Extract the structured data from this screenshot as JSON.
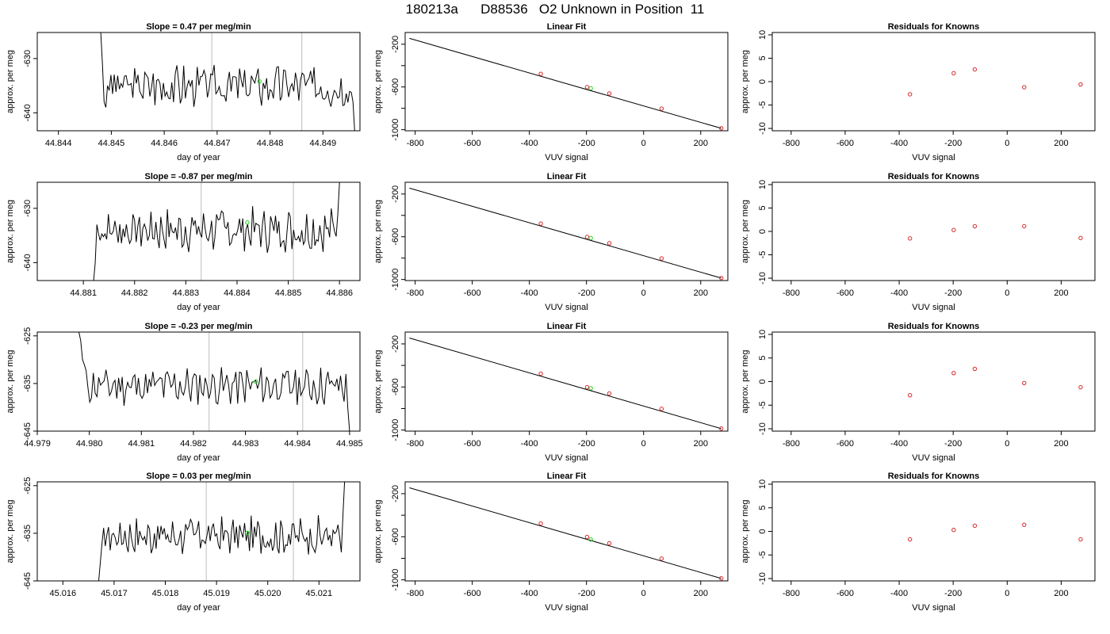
{
  "page_title": "180213a      D88536   O2 Unknown in Position  11",
  "chart_data": [
    {
      "type": "line",
      "title": "Slope =  0.47  per meg/min",
      "xlabel": "day of year",
      "ylabel": "approx. per meg",
      "xlim": [
        44.8436,
        44.8497
      ],
      "ylim": [
        -643.3,
        -625.2
      ],
      "xticks": [
        44.844,
        44.845,
        44.846,
        44.847,
        44.848,
        44.849
      ],
      "xtick_labels": [
        "44.844",
        "44.845",
        "44.846",
        "44.847",
        "44.848",
        "44.849"
      ],
      "yticks": [
        -630,
        -640
      ],
      "ytick_labels": [
        "-630",
        "-640"
      ],
      "vlines": [
        44.8469,
        44.8486
      ],
      "series": [
        {
          "start": 44.8448,
          "end": 44.8496,
          "mean": -635,
          "seed": 3,
          "head": [
            -625.2,
            -631,
            -638,
            -639,
            -635
          ],
          "tail": [
            -638,
            -643.3
          ]
        }
      ],
      "marker": {
        "x": 44.8478,
        "y": -634.2
      },
      "grid": false
    },
    {
      "type": "scatter",
      "title": "Linear Fit",
      "xlabel": "VUV signal",
      "ylabel": "approx. per meg",
      "xlim": [
        -835,
        295
      ],
      "ylim": [
        -1010,
        -90
      ],
      "xticks": [
        -800,
        -600,
        -400,
        -200,
        0,
        200
      ],
      "xtick_labels": [
        "-800",
        "-600",
        "-400",
        "-200",
        "0",
        "200"
      ],
      "yticks": [
        -200,
        -400,
        -600,
        -800,
        -1000
      ],
      "ytick_labels": [
        "-200",
        "",
        "-600",
        "",
        "-1000"
      ],
      "line": {
        "x": [
          -820,
          272
        ],
        "y": [
          -145,
          -987
        ]
      },
      "points": {
        "x": [
          -360,
          -198,
          -120,
          63,
          272
        ],
        "y": [
          -477,
          -602,
          -661,
          -803,
          -986
        ]
      },
      "marker": {
        "x": -185,
        "y": -612
      },
      "grid": false
    },
    {
      "type": "scatter",
      "title": "Residuals for Knowns",
      "xlabel": "VUV signal",
      "ylabel": "approx. per meg",
      "xlim": [
        -870,
        325
      ],
      "ylim": [
        -10.5,
        10.5
      ],
      "xticks": [
        -800,
        -600,
        -400,
        -200,
        0,
        200
      ],
      "xtick_labels": [
        "-800",
        "-600",
        "-400",
        "-200",
        "0",
        "200"
      ],
      "yticks": [
        10,
        5,
        0,
        -5,
        -10
      ],
      "ytick_labels": [
        "10",
        "5",
        "0",
        "-5",
        "-10"
      ],
      "points": {
        "x": [
          -360,
          -198,
          -120,
          63,
          272
        ],
        "y": [
          -2.7,
          1.8,
          2.6,
          -1.2,
          -0.6
        ]
      },
      "grid": false
    },
    {
      "type": "line",
      "title": "Slope =  -0.87  per meg/min",
      "xlabel": "day of year",
      "ylabel": "approx. per meg",
      "xlim": [
        44.8801,
        44.8864
      ],
      "ylim": [
        -643.3,
        -625.2
      ],
      "xticks": [
        44.881,
        44.882,
        44.883,
        44.884,
        44.885,
        44.886
      ],
      "xtick_labels": [
        "44.881",
        "44.882",
        "44.883",
        "44.884",
        "44.885",
        "44.886"
      ],
      "yticks": [
        -630,
        -640
      ],
      "ytick_labels": [
        "-630",
        "-640"
      ],
      "vlines": [
        44.8833,
        44.8851
      ],
      "series": [
        {
          "start": 44.8812,
          "end": 44.886,
          "mean": -634,
          "seed": 7,
          "head": [
            -643.3,
            -640,
            -633
          ],
          "tail": [
            -631,
            -625.2
          ]
        }
      ],
      "marker": {
        "x": 44.8842,
        "y": -632.6
      },
      "grid": false
    },
    {
      "type": "scatter",
      "title": "Linear Fit",
      "xlabel": "VUV signal",
      "ylabel": "approx. per meg",
      "xlim": [
        -835,
        295
      ],
      "ylim": [
        -1010,
        -90
      ],
      "xticks": [
        -800,
        -600,
        -400,
        -200,
        0,
        200
      ],
      "xtick_labels": [
        "-800",
        "-600",
        "-400",
        "-200",
        "0",
        "200"
      ],
      "yticks": [
        -200,
        -400,
        -600,
        -800,
        -1000
      ],
      "ytick_labels": [
        "-200",
        "",
        "-600",
        "",
        "-1000"
      ],
      "line": {
        "x": [
          -820,
          272
        ],
        "y": [
          -145,
          -987
        ]
      },
      "points": {
        "x": [
          -360,
          -198,
          -120,
          63,
          272
        ],
        "y": [
          -477,
          -602,
          -661,
          -803,
          -986
        ]
      },
      "marker": {
        "x": -185,
        "y": -612
      },
      "grid": false
    },
    {
      "type": "scatter",
      "title": "Residuals for Knowns",
      "xlabel": "VUV signal",
      "ylabel": "approx. per meg",
      "xlim": [
        -870,
        325
      ],
      "ylim": [
        -10.5,
        10.5
      ],
      "xticks": [
        -800,
        -600,
        -400,
        -200,
        0,
        200
      ],
      "xtick_labels": [
        "-800",
        "-600",
        "-400",
        "-200",
        "0",
        "200"
      ],
      "yticks": [
        10,
        5,
        0,
        -5,
        -10
      ],
      "ytick_labels": [
        "10",
        "5",
        "0",
        "-5",
        "-10"
      ],
      "points": {
        "x": [
          -360,
          -198,
          -120,
          63,
          272
        ],
        "y": [
          -1.5,
          0.3,
          1.1,
          1.1,
          -1.4
        ]
      },
      "grid": false
    },
    {
      "type": "line",
      "title": "Slope =  -0.23  per meg/min",
      "xlabel": "day of year",
      "ylabel": "approx. per meg",
      "xlim": [
        44.979,
        44.9852
      ],
      "ylim": [
        -645,
        -624.2
      ],
      "xticks": [
        44.979,
        44.98,
        44.981,
        44.982,
        44.983,
        44.984,
        44.985
      ],
      "xtick_labels": [
        "44.979",
        "44.980",
        "44.981",
        "44.982",
        "44.983",
        "44.984",
        "44.985"
      ],
      "yticks": [
        -625,
        -635,
        -645
      ],
      "ytick_labels": [
        "-625",
        "-635",
        "-645"
      ],
      "vlines": [
        44.9823,
        44.9841
      ],
      "series": [
        {
          "start": 44.9798,
          "end": 44.985,
          "mean": -635.5,
          "seed": 11,
          "head": [
            -624.2,
            -626,
            -630,
            -631
          ],
          "tail": [
            -640,
            -645
          ]
        }
      ],
      "marker": {
        "x": 44.9832,
        "y": -634.6
      },
      "grid": false
    },
    {
      "type": "scatter",
      "title": "Linear Fit",
      "xlabel": "VUV signal",
      "ylabel": "approx. per meg",
      "xlim": [
        -835,
        295
      ],
      "ylim": [
        -1010,
        -90
      ],
      "xticks": [
        -800,
        -600,
        -400,
        -200,
        0,
        200
      ],
      "xtick_labels": [
        "-800",
        "-600",
        "-400",
        "-200",
        "0",
        "200"
      ],
      "yticks": [
        -200,
        -400,
        -600,
        -800,
        -1000
      ],
      "ytick_labels": [
        "-200",
        "",
        "-600",
        "",
        "-1000"
      ],
      "line": {
        "x": [
          -820,
          272
        ],
        "y": [
          -145,
          -987
        ]
      },
      "points": {
        "x": [
          -360,
          -198,
          -120,
          63,
          272
        ],
        "y": [
          -477,
          -602,
          -661,
          -803,
          -986
        ]
      },
      "marker": {
        "x": -185,
        "y": -612
      },
      "grid": false
    },
    {
      "type": "scatter",
      "title": "Residuals for Knowns",
      "xlabel": "VUV signal",
      "ylabel": "approx. per meg",
      "xlim": [
        -870,
        325
      ],
      "ylim": [
        -10.5,
        10.5
      ],
      "xticks": [
        -800,
        -600,
        -400,
        -200,
        0,
        200
      ],
      "xtick_labels": [
        "-800",
        "-600",
        "-400",
        "-200",
        "0",
        "200"
      ],
      "yticks": [
        10,
        5,
        0,
        -5,
        -10
      ],
      "ytick_labels": [
        "10",
        "5",
        "0",
        "-5",
        "-10"
      ],
      "points": {
        "x": [
          -360,
          -198,
          -120,
          63,
          272
        ],
        "y": [
          -2.9,
          1.8,
          2.7,
          -0.3,
          -1.2
        ]
      },
      "grid": false
    },
    {
      "type": "line",
      "title": "Slope =  0.03  per meg/min",
      "xlabel": "day of year",
      "ylabel": "approx. per meg",
      "xlim": [
        45.0155,
        45.0218
      ],
      "ylim": [
        -645,
        -624.2
      ],
      "xticks": [
        45.016,
        45.017,
        45.018,
        45.019,
        45.02,
        45.021
      ],
      "xtick_labels": [
        "45.016",
        "45.017",
        "45.018",
        "45.019",
        "45.020",
        "45.021"
      ],
      "yticks": [
        -625,
        -635,
        -645
      ],
      "ytick_labels": [
        "-625",
        "-635",
        "-645"
      ],
      "vlines": [
        45.0188,
        45.0205
      ],
      "series": [
        {
          "start": 45.0167,
          "end": 45.0215,
          "mean": -635.5,
          "seed": 17,
          "head": [
            -645,
            -641,
            -637
          ],
          "tail": [
            -639,
            -631,
            -624.2
          ]
        }
      ],
      "marker": {
        "x": 45.0196,
        "y": -634.9
      },
      "grid": false
    },
    {
      "type": "scatter",
      "title": "Linear Fit",
      "xlabel": "VUV signal",
      "ylabel": "approx. per meg",
      "xlim": [
        -835,
        295
      ],
      "ylim": [
        -1010,
        -90
      ],
      "xticks": [
        -800,
        -600,
        -400,
        -200,
        0,
        200
      ],
      "xtick_labels": [
        "-800",
        "-600",
        "-400",
        "-200",
        "0",
        "200"
      ],
      "yticks": [
        -200,
        -400,
        -600,
        -800,
        -1000
      ],
      "ytick_labels": [
        "-200",
        "",
        "-600",
        "",
        "-1000"
      ],
      "line": {
        "x": [
          -820,
          272
        ],
        "y": [
          -145,
          -987
        ]
      },
      "points": {
        "x": [
          -360,
          -198,
          -120,
          63,
          272
        ],
        "y": [
          -477,
          -602,
          -661,
          -803,
          -986
        ]
      },
      "marker": {
        "x": -185,
        "y": -625
      },
      "grid": false
    },
    {
      "type": "scatter",
      "title": "Residuals for Knowns",
      "xlabel": "VUV signal",
      "ylabel": "approx. per meg",
      "xlim": [
        -870,
        325
      ],
      "ylim": [
        -10.5,
        10.5
      ],
      "xticks": [
        -800,
        -600,
        -400,
        -200,
        0,
        200
      ],
      "xtick_labels": [
        "-800",
        "-600",
        "-400",
        "-200",
        "0",
        "200"
      ],
      "yticks": [
        10,
        5,
        0,
        -5,
        -10
      ],
      "ytick_labels": [
        "10",
        "5",
        "0",
        "-5",
        "-10"
      ],
      "points": {
        "x": [
          -360,
          -198,
          -120,
          63,
          272
        ],
        "y": [
          -1.7,
          0.3,
          1.2,
          1.4,
          -1.7
        ]
      },
      "grid": false
    }
  ],
  "colors": {
    "axis": "#000000",
    "trace": "#000000",
    "vline": "#c8c8c8",
    "known_point": "#d62728",
    "unknown_marker": "#22cc22"
  }
}
